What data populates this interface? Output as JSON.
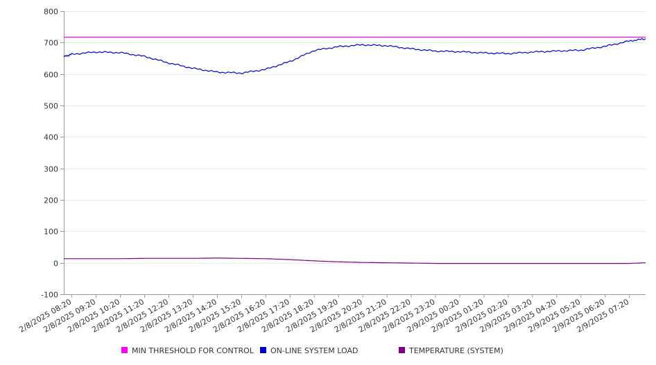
{
  "chart_data": {
    "type": "line",
    "title": "",
    "xlabel": "",
    "ylabel": "",
    "ylim": [
      -100,
      800
    ],
    "yticks": [
      -100,
      0,
      100,
      200,
      300,
      400,
      500,
      600,
      700,
      800
    ],
    "grid": true,
    "legend_position": "bottom",
    "x_tick_labels": [
      "2/8/2025 08:20",
      "2/8/2025 09:20",
      "2/8/2025 10:20",
      "2/8/2025 11:20",
      "2/8/2025 12:20",
      "2/8/2025 13:20",
      "2/8/2025 14:20",
      "2/8/2025 15:20",
      "2/8/2025 16:20",
      "2/8/2025 17:20",
      "2/8/2025 18:20",
      "2/8/2025 19:20",
      "2/8/2025 20:20",
      "2/8/2025 21:20",
      "2/8/2025 22:20",
      "2/8/2025 23:20",
      "2/9/2025 00:20",
      "2/9/2025 01:20",
      "2/9/2025 02:20",
      "2/9/2025 03:20",
      "2/9/2025 04:20",
      "2/9/2025 05:20",
      "2/9/2025 06:20",
      "2/9/2025 07:20"
    ],
    "x": [
      "2/8/2025 08:00",
      "2/8/2025 08:20",
      "2/8/2025 09:20",
      "2/8/2025 10:20",
      "2/8/2025 11:20",
      "2/8/2025 12:20",
      "2/8/2025 13:20",
      "2/8/2025 14:20",
      "2/8/2025 15:20",
      "2/8/2025 16:20",
      "2/8/2025 17:20",
      "2/8/2025 18:20",
      "2/8/2025 19:20",
      "2/8/2025 20:20",
      "2/8/2025 21:20",
      "2/8/2025 22:20",
      "2/8/2025 23:20",
      "2/9/2025 00:20",
      "2/9/2025 01:20",
      "2/9/2025 02:20",
      "2/9/2025 03:20",
      "2/9/2025 04:20",
      "2/9/2025 05:20",
      "2/9/2025 06:20",
      "2/9/2025 07:20",
      "2/9/2025 08:00"
    ],
    "series": [
      {
        "name": "MIN THRESHOLD FOR CONTROL",
        "color": "#ff00ff",
        "values": [
          717,
          717,
          717,
          717,
          717,
          717,
          717,
          717,
          717,
          717,
          717,
          717,
          717,
          717,
          717,
          717,
          717,
          717,
          717,
          717,
          717,
          717,
          717,
          717,
          717,
          717
        ]
      },
      {
        "name": "ON-LINE SYSTEM LOAD",
        "color": "#0000cc",
        "values": [
          655,
          663,
          670,
          668,
          656,
          635,
          618,
          606,
          603,
          615,
          640,
          675,
          687,
          693,
          690,
          680,
          673,
          671,
          667,
          665,
          670,
          673,
          676,
          688,
          705,
          712
        ]
      },
      {
        "name": "TEMPERATURE (SYSTEM)",
        "color": "#800080",
        "values": [
          13,
          13,
          13,
          13,
          14,
          14,
          14,
          15,
          14,
          13,
          10,
          6,
          3,
          1,
          0,
          -1,
          -2,
          -2,
          -2,
          -2,
          -2,
          -2,
          -2,
          -2,
          -2,
          0
        ]
      }
    ]
  }
}
